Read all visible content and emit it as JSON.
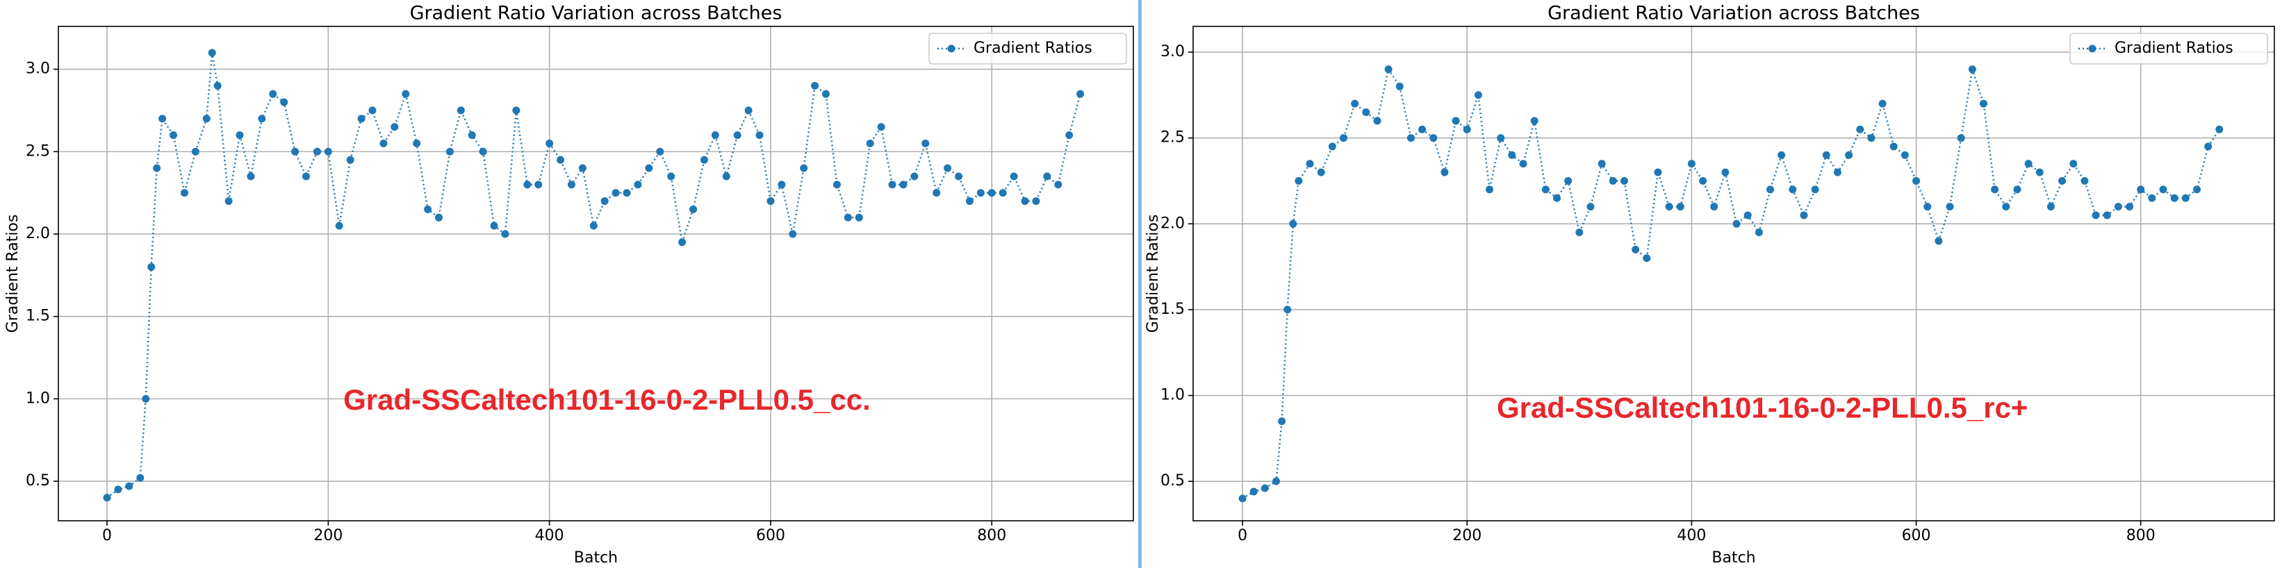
{
  "chart_data": [
    {
      "type": "line",
      "title": "Gradient Ratio Variation across Batches",
      "xlabel": "Batch",
      "ylabel": "Gradient Ratios",
      "annotation": "Grad-SSCaltech101-16-0-2-PLL0.5_cc.",
      "x": [
        0,
        10,
        20,
        30,
        35,
        40,
        45,
        50,
        60,
        70,
        80,
        90,
        95,
        100,
        110,
        120,
        130,
        140,
        150,
        160,
        170,
        180,
        190,
        200,
        210,
        220,
        230,
        240,
        250,
        260,
        270,
        280,
        290,
        300,
        310,
        320,
        330,
        340,
        350,
        360,
        370,
        380,
        390,
        400,
        410,
        420,
        430,
        440,
        450,
        460,
        470,
        480,
        490,
        500,
        510,
        520,
        530,
        540,
        550,
        560,
        570,
        580,
        590,
        600,
        610,
        620,
        630,
        640,
        650,
        660,
        670,
        680,
        690,
        700,
        710,
        720,
        730,
        740,
        750,
        760,
        770,
        780,
        790,
        800,
        810,
        820,
        830,
        840,
        850,
        860,
        870,
        880
      ],
      "series": [
        {
          "name": "Gradient Ratios",
          "color": "#1f77b4",
          "values": [
            0.4,
            0.45,
            0.47,
            0.52,
            1.0,
            1.8,
            2.4,
            2.7,
            2.6,
            2.25,
            2.5,
            2.7,
            3.1,
            2.9,
            2.2,
            2.6,
            2.35,
            2.7,
            2.85,
            2.8,
            2.5,
            2.35,
            2.5,
            2.5,
            2.05,
            2.45,
            2.7,
            2.75,
            2.55,
            2.65,
            2.85,
            2.55,
            2.15,
            2.1,
            2.5,
            2.75,
            2.6,
            2.5,
            2.05,
            2.0,
            2.75,
            2.3,
            2.3,
            2.55,
            2.45,
            2.3,
            2.4,
            2.05,
            2.2,
            2.25,
            2.25,
            2.3,
            2.4,
            2.5,
            2.35,
            1.95,
            2.15,
            2.45,
            2.6,
            2.35,
            2.6,
            2.75,
            2.6,
            2.2,
            2.3,
            2.0,
            2.4,
            2.9,
            2.85,
            2.3,
            2.1,
            2.1,
            2.55,
            2.65,
            2.3,
            2.3,
            2.35,
            2.55,
            2.25,
            2.4,
            2.35,
            2.2,
            2.25,
            2.25,
            2.25,
            2.35,
            2.2,
            2.2,
            2.35,
            2.3,
            2.6,
            2.85
          ]
        }
      ],
      "xlim": [
        -44,
        928
      ],
      "xticks": [
        0,
        200,
        400,
        600,
        800
      ],
      "ylim": [
        0.26,
        3.26
      ],
      "yticks": [
        0.5,
        {
          "value": 1,
          "label": "1.0"
        },
        1.5,
        {
          "value": 2,
          "label": "2.0"
        },
        2.5,
        {
          "value": 3,
          "label": "3.0"
        }
      ],
      "grid": true,
      "legend": "upper right",
      "annotation_color": "#e8262b"
    },
    {
      "type": "line",
      "title": "Gradient Ratio Variation across Batches",
      "xlabel": "Batch",
      "ylabel": "Gradient Ratios",
      "annotation": "Grad-SSCaltech101-16-0-2-PLL0.5_rc+",
      "x": [
        0,
        10,
        20,
        30,
        35,
        40,
        45,
        50,
        60,
        70,
        80,
        90,
        100,
        110,
        120,
        130,
        140,
        150,
        160,
        170,
        180,
        190,
        200,
        210,
        220,
        230,
        240,
        250,
        260,
        270,
        280,
        290,
        300,
        310,
        320,
        330,
        340,
        350,
        360,
        370,
        380,
        390,
        400,
        410,
        420,
        430,
        440,
        450,
        460,
        470,
        480,
        490,
        500,
        510,
        520,
        530,
        540,
        550,
        560,
        570,
        580,
        590,
        600,
        610,
        620,
        630,
        640,
        650,
        660,
        670,
        680,
        690,
        700,
        710,
        720,
        730,
        740,
        750,
        760,
        770,
        780,
        790,
        800,
        810,
        820,
        830,
        840,
        850,
        860,
        870
      ],
      "series": [
        {
          "name": "Gradient Ratios",
          "color": "#1f77b4",
          "values": [
            0.4,
            0.44,
            0.46,
            0.5,
            0.85,
            1.5,
            2.0,
            2.25,
            2.35,
            2.3,
            2.45,
            2.5,
            2.7,
            2.65,
            2.6,
            2.9,
            2.8,
            2.5,
            2.55,
            2.5,
            2.3,
            2.6,
            2.55,
            2.75,
            2.2,
            2.5,
            2.4,
            2.35,
            2.6,
            2.2,
            2.15,
            2.25,
            1.95,
            2.1,
            2.35,
            2.25,
            2.25,
            1.85,
            1.8,
            2.3,
            2.1,
            2.1,
            2.35,
            2.25,
            2.1,
            2.3,
            2.0,
            2.05,
            1.95,
            2.2,
            2.4,
            2.2,
            2.05,
            2.2,
            2.4,
            2.3,
            2.4,
            2.55,
            2.5,
            2.7,
            2.45,
            2.4,
            2.25,
            2.1,
            1.9,
            2.1,
            2.5,
            2.9,
            2.7,
            2.2,
            2.1,
            2.2,
            2.35,
            2.3,
            2.1,
            2.25,
            2.35,
            2.25,
            2.05,
            2.05,
            2.1,
            2.1,
            2.2,
            2.15,
            2.2,
            2.15,
            2.15,
            2.2,
            2.45,
            2.55
          ]
        }
      ],
      "xlim": [
        -44,
        919
      ],
      "xticks": [
        0,
        200,
        400,
        600,
        800
      ],
      "ylim": [
        0.27,
        3.15
      ],
      "yticks": [
        0.5,
        {
          "value": 1,
          "label": "1.0"
        },
        1.5,
        {
          "value": 2,
          "label": "2.0"
        },
        2.5,
        {
          "value": 3,
          "label": "3.0"
        }
      ],
      "grid": true,
      "legend": "upper right",
      "annotation_color": "#e8262b"
    }
  ]
}
